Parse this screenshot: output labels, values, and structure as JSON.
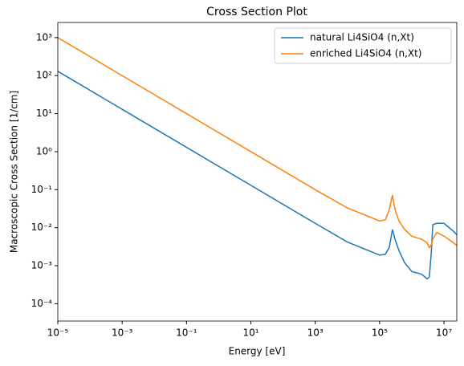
{
  "chart_data": {
    "type": "line",
    "title": "Cross Section Plot",
    "x_label": "Energy [eV]",
    "y_label": "Macroscopic Cross Section [1/cm]",
    "x_scale": "log",
    "y_scale": "log",
    "legend": "upper right",
    "x": [
      1e-05,
      0.001,
      0.1,
      10.0,
      1000.0,
      10000.0,
      100000.0,
      150000.0,
      200000.0,
      250000.0,
      300000.0,
      400000.0,
      600000.0,
      1000000.0,
      2000000.0,
      3000000.0,
      3500000.0,
      4000000.0,
      4500000.0,
      6000000.0,
      10000000.0,
      20000000.0,
      25000000.0
    ],
    "series": [
      {
        "name": "natural Li4SiO4 (n,Xt)",
        "color": "#1f77b4",
        "values": [
          130,
          13,
          1.3,
          0.13,
          0.013,
          0.0042,
          0.0019,
          0.002,
          0.003,
          0.009,
          0.005,
          0.0025,
          0.0012,
          0.0007,
          0.0006,
          0.00045,
          0.0005,
          0.002,
          0.012,
          0.013,
          0.013,
          0.008,
          0.0065
        ]
      },
      {
        "name": "enriched Li4SiO4 (n,Xt)",
        "color": "#ff7f0e",
        "values": [
          1000,
          100,
          10,
          1,
          0.1,
          0.033,
          0.015,
          0.016,
          0.03,
          0.072,
          0.03,
          0.015,
          0.009,
          0.006,
          0.005,
          0.004,
          0.003,
          0.0035,
          0.005,
          0.0075,
          0.006,
          0.004,
          0.0034
        ]
      }
    ],
    "xlim": [
      1e-05,
      25000000.0
    ],
    "ylim": [
      3.5e-05,
      2500.0
    ],
    "xticks": [
      {
        "value": 1e-05,
        "label": "10⁻⁵"
      },
      {
        "value": 0.001,
        "label": "10⁻³"
      },
      {
        "value": 0.1,
        "label": "10⁻¹"
      },
      {
        "value": 10.0,
        "label": "10¹"
      },
      {
        "value": 1000.0,
        "label": "10³"
      },
      {
        "value": 100000.0,
        "label": "10⁵"
      },
      {
        "value": 10000000.0,
        "label": "10⁷"
      }
    ],
    "yticks": [
      {
        "value": 0.0001,
        "label": "10⁻⁴"
      },
      {
        "value": 0.001,
        "label": "10⁻³"
      },
      {
        "value": 0.01,
        "label": "10⁻²"
      },
      {
        "value": 0.1,
        "label": "10⁻¹"
      },
      {
        "value": 1,
        "label": "10⁰"
      },
      {
        "value": 10,
        "label": "10¹"
      },
      {
        "value": 100,
        "label": "10²"
      },
      {
        "value": 1000,
        "label": "10³"
      }
    ]
  }
}
